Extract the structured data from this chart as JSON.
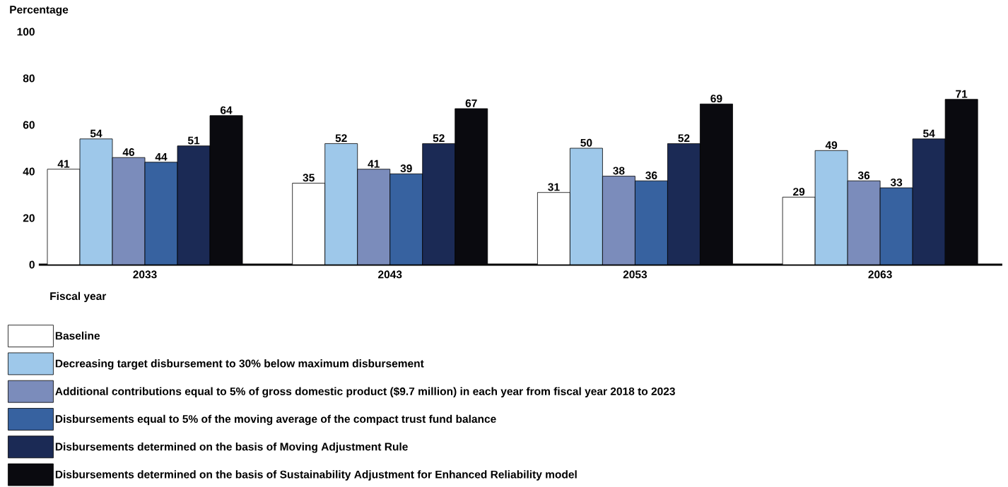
{
  "chart_data": {
    "type": "bar",
    "ylabel": "Percentage",
    "xlabel": "Fiscal year",
    "categories": [
      "2033",
      "2043",
      "2053",
      "2063"
    ],
    "ylim": [
      0,
      100
    ],
    "yticks": [
      0,
      20,
      40,
      60,
      80,
      100
    ],
    "data_labels": true,
    "legend": "bottom",
    "series": [
      {
        "name": "Baseline",
        "color": "#ffffff",
        "values": [
          41,
          35,
          31,
          29
        ]
      },
      {
        "name": "Decreasing target disbursement to 30% below maximum disbursement",
        "color": "#9ec8ea",
        "values": [
          54,
          52,
          50,
          49
        ]
      },
      {
        "name": "Additional contributions equal to 5% of gross domestic product ($9.7 million) in each year from fiscal year 2018 to 2023",
        "color": "#7b8cbb",
        "values": [
          46,
          41,
          38,
          36
        ]
      },
      {
        "name": "Disbursements equal to 5% of the moving average of the compact trust fund balance",
        "color": "#3762a0",
        "values": [
          44,
          39,
          36,
          33
        ]
      },
      {
        "name": "Disbursements determined on the basis of Moving Adjustment Rule",
        "color": "#1b2a55",
        "values": [
          51,
          52,
          52,
          54
        ]
      },
      {
        "name": "Disbursements determined on the basis of Sustainability Adjustment for Enhanced Reliability model",
        "color": "#0a0a0f",
        "values": [
          64,
          67,
          69,
          71
        ]
      }
    ]
  }
}
